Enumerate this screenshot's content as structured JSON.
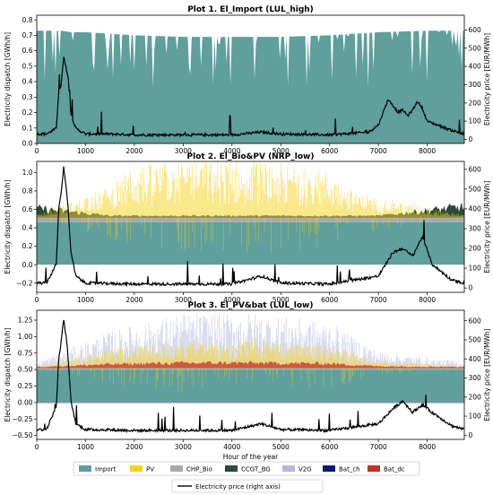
{
  "colors": {
    "Import": "#5f9f9c",
    "PV": "#f5d21f",
    "CHP_Bio": "#a9a9a9",
    "CCGT_BG": "#2b4a3e",
    "V2G": "#b0b8dc",
    "Bat_ch": "#0a1a6e",
    "Bat_dc": "#c0322a",
    "price": "#000000"
  },
  "legend": {
    "entries": [
      "Import",
      "PV",
      "CHP_Bio",
      "CCGT_BG",
      "V2G",
      "Bat_ch",
      "Bat_dc"
    ],
    "price_label": "Electricity price (right axis)"
  },
  "chart_data": [
    {
      "type": "area",
      "title": "Plot 1. El_Import (LUL_high)",
      "xlabel": "",
      "ylabel": "Electricity dispatch [GWh/h]",
      "y2label": "Electricity price [EUR/MWh]",
      "xlim": [
        0,
        8760
      ],
      "ylim": [
        0,
        0.83
      ],
      "y2lim": [
        -22,
        680
      ],
      "yticks": [
        "0.0",
        "0.1",
        "0.2",
        "0.3",
        "0.4",
        "0.5",
        "0.6",
        "0.7",
        "0.8"
      ],
      "y2ticks": [
        "0",
        "100",
        "200",
        "300",
        "400",
        "500",
        "600"
      ],
      "xticks": [
        "0",
        "1000",
        "2000",
        "3000",
        "4000",
        "5000",
        "6000",
        "7000",
        "8000"
      ],
      "series": [
        {
          "name": "Import",
          "x": [
            0,
            300,
            500,
            700,
            1000,
            2000,
            3000,
            4000,
            5000,
            6000,
            7000,
            8000,
            8760
          ],
          "values": [
            0.73,
            0.73,
            0.73,
            0.72,
            0.72,
            0.7,
            0.69,
            0.69,
            0.69,
            0.7,
            0.72,
            0.73,
            0.73
          ]
        },
        {
          "name": "Electricity price (right axis)",
          "x": [
            0,
            200,
            400,
            450,
            500,
            550,
            600,
            650,
            700,
            800,
            1000,
            1500,
            2000,
            3000,
            4000,
            4600,
            5000,
            6000,
            6800,
            7000,
            7200,
            7400,
            7500,
            7600,
            7700,
            7800,
            7900,
            8000,
            8500,
            8760
          ],
          "values": [
            30,
            30,
            60,
            260,
            300,
            450,
            400,
            320,
            140,
            60,
            30,
            30,
            25,
            25,
            25,
            40,
            30,
            25,
            40,
            80,
            220,
            150,
            160,
            130,
            160,
            210,
            170,
            100,
            50,
            30
          ]
        }
      ]
    },
    {
      "type": "area",
      "title": "Plot 2. El_Bio&PV (NRP_low)",
      "xlabel": "",
      "ylabel": "Electricity dispatch [GWh/h]",
      "y2label": "Electricity price [EUR/MWh]",
      "xlim": [
        0,
        8760
      ],
      "ylim": [
        -0.3,
        1.12
      ],
      "y2lim": [
        -22,
        640
      ],
      "yticks": [
        "−0.2",
        "0.0",
        "0.2",
        "0.4",
        "0.6",
        "0.8",
        "1.0"
      ],
      "y2ticks": [
        "0",
        "100",
        "200",
        "300",
        "400",
        "500",
        "600"
      ],
      "xticks": [
        "0",
        "1000",
        "2000",
        "3000",
        "4000",
        "5000",
        "6000",
        "7000",
        "8000"
      ],
      "series": [
        {
          "name": "Import",
          "x": [
            0,
            8760
          ],
          "values": [
            0.46,
            0.46
          ]
        },
        {
          "name": "CHP_Bio",
          "x": [
            0,
            8760
          ],
          "values": [
            0.05,
            0.05
          ]
        },
        {
          "name": "CCGT_BG",
          "x": [
            0,
            1500,
            7000,
            8760
          ],
          "values": [
            0.1,
            0.02,
            0.02,
            0.12
          ]
        },
        {
          "name": "PV",
          "x": [
            0,
            1500,
            2000,
            3000,
            4000,
            5000,
            6000,
            6500,
            8760
          ],
          "values": [
            0.02,
            0.25,
            0.4,
            0.45,
            0.45,
            0.42,
            0.35,
            0.2,
            0.02
          ]
        },
        {
          "name": "Electricity price (right axis)",
          "x": [
            0,
            200,
            400,
            450,
            500,
            550,
            600,
            650,
            700,
            800,
            1000,
            2000,
            4000,
            4600,
            5000,
            6000,
            7000,
            7300,
            7500,
            7700,
            7900,
            8100,
            8500,
            8760
          ],
          "values": [
            25,
            25,
            120,
            400,
            480,
            610,
            520,
            380,
            180,
            60,
            25,
            20,
            20,
            60,
            25,
            20,
            60,
            180,
            200,
            160,
            260,
            120,
            40,
            25
          ]
        }
      ]
    },
    {
      "type": "area",
      "title": "Plot 3. El_PV&bat (LUL_low)",
      "xlabel": "Hour of the year",
      "ylabel": "Electricity dispatch [GWh/h]",
      "y2label": "Electricity price [EUR/MWh]",
      "xlim": [
        0,
        8760
      ],
      "ylim": [
        -0.56,
        1.4
      ],
      "y2lim": [
        -22,
        655
      ],
      "yticks": [
        "−0.50",
        "−0.25",
        "0.00",
        "0.25",
        "0.50",
        "0.75",
        "1.00",
        "1.25"
      ],
      "y2ticks": [
        "0",
        "100",
        "200",
        "300",
        "400",
        "500",
        "600"
      ],
      "xticks": [
        "0",
        "1000",
        "2000",
        "3000",
        "4000",
        "5000",
        "6000",
        "7000",
        "8000"
      ],
      "series": [
        {
          "name": "Import",
          "x": [
            0,
            8760
          ],
          "values": [
            0.5,
            0.5
          ]
        },
        {
          "name": "Bat_dc",
          "x": [
            0,
            1500,
            3000,
            4500,
            6000,
            7000,
            8760
          ],
          "values": [
            0.02,
            0.06,
            0.08,
            0.08,
            0.07,
            0.03,
            0.02
          ]
        },
        {
          "name": "PV",
          "x": [
            0,
            1500,
            3000,
            4500,
            6000,
            7000,
            8760
          ],
          "values": [
            0.02,
            0.2,
            0.3,
            0.3,
            0.25,
            0.08,
            0.02
          ]
        },
        {
          "name": "V2G",
          "x": [
            0,
            1500,
            3000,
            4500,
            6000,
            7000,
            8760
          ],
          "values": [
            0.05,
            0.2,
            0.3,
            0.3,
            0.25,
            0.1,
            0.05
          ]
        },
        {
          "name": "Electricity price (right axis)",
          "x": [
            0,
            200,
            400,
            450,
            500,
            550,
            600,
            650,
            700,
            800,
            1000,
            2000,
            4000,
            4600,
            5000,
            6000,
            7000,
            7300,
            7500,
            7700,
            7900,
            8100,
            8500,
            8760
          ],
          "values": [
            30,
            30,
            150,
            400,
            480,
            610,
            520,
            380,
            180,
            60,
            30,
            25,
            25,
            60,
            30,
            25,
            60,
            140,
            180,
            120,
            160,
            120,
            50,
            30
          ]
        }
      ]
    }
  ]
}
